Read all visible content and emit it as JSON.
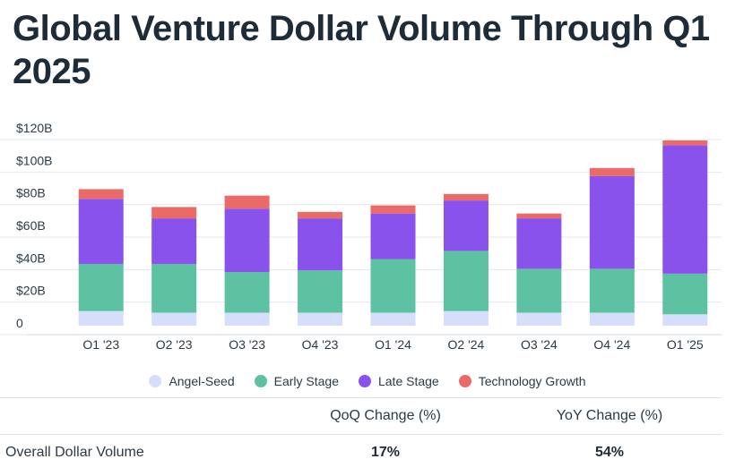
{
  "title": "Global Venture Dollar Volume Through Q1 2025",
  "chart_data": {
    "type": "bar",
    "stacked": true,
    "categories": [
      "Q1 '23",
      "Q2 '23",
      "Q3 '23",
      "Q4 '23",
      "Q1 '24",
      "Q2 '24",
      "Q3 '24",
      "Q4 '24",
      "Q1 '25"
    ],
    "series": [
      {
        "name": "Angel-Seed",
        "color": "#d5defa",
        "values": [
          9,
          8,
          8,
          8,
          8,
          9,
          8,
          8,
          7
        ]
      },
      {
        "name": "Early Stage",
        "color": "#5cc2a2",
        "values": [
          29,
          30,
          25,
          26,
          33,
          37,
          27,
          27,
          25
        ]
      },
      {
        "name": "Late Stage",
        "color": "#8a52ec",
        "values": [
          40,
          28,
          39,
          32,
          28,
          31,
          31,
          57,
          79
        ]
      },
      {
        "name": "Technology Growth",
        "color": "#ea6a68",
        "values": [
          6,
          7,
          8,
          4,
          5,
          4,
          3,
          5,
          3
        ]
      }
    ],
    "yticks": [
      "0",
      "$20B",
      "$40B",
      "$60B",
      "$80B",
      "$100B",
      "$120B"
    ],
    "ylim": [
      0,
      120
    ],
    "xlabel": "",
    "ylabel": "",
    "grid": true,
    "legend": "bottom"
  },
  "table": {
    "headers": [
      "",
      "QoQ Change (%)",
      "YoY Change (%)"
    ],
    "row_label": "Overall Dollar Volume",
    "qoq": "17%",
    "yoy": "54%"
  }
}
